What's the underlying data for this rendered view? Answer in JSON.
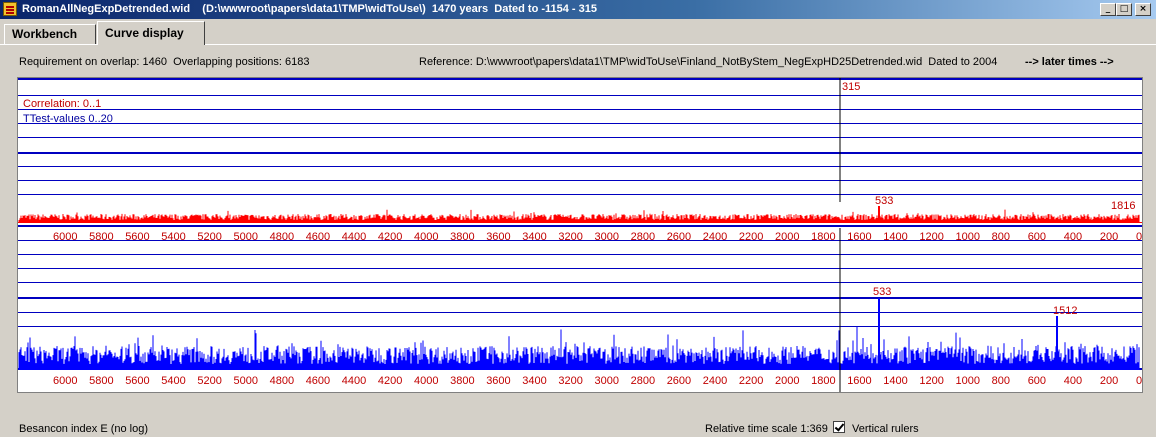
{
  "window": {
    "title": "RomanAllNegExpDetrended.wid    (D:\\wwwroot\\papers\\data1\\TMP\\widToUse\\)  1470 years  Dated to -1154 - 315",
    "btn_minimize": "_",
    "btn_maximize": "□",
    "btn_close": "×"
  },
  "tabs": [
    {
      "label": "Workbench",
      "active": false
    },
    {
      "label": "Curve display",
      "active": true
    }
  ],
  "info": {
    "overlap": "Requirement on overlap: 1460  Overlapping positions: 6183",
    "reference": "Reference: D:\\wwwroot\\papers\\data1\\TMP\\widToUse\\Finland_NotByStem_NegExpHD25Detrended.wid  Dated to 2004",
    "later_times": "--> later times -->"
  },
  "plot": {
    "legend_correlation": "Correlation: 0..1",
    "legend_ttest": "TTest-values 0..20",
    "cursor_label": "315",
    "top_peak_label": "533",
    "top_max_label": "1816",
    "bottom_peak_label": "533",
    "bottom_max_label": "1512",
    "axis_ticks": [
      "6000",
      "5800",
      "5600",
      "5400",
      "5200",
      "5000",
      "4800",
      "4600",
      "4400",
      "4200",
      "4000",
      "3800",
      "3600",
      "3400",
      "3200",
      "3000",
      "2800",
      "2600",
      "2400",
      "2200",
      "2000",
      "1800",
      "1600",
      "1400",
      "1200",
      "1000",
      "800",
      "600",
      "400",
      "200",
      "0"
    ],
    "colors": {
      "correlation": "#ff0000",
      "ttest": "#0000ff",
      "axis_text": "#c00000"
    }
  },
  "bottom": {
    "index_label": "Besancon index E (no log)",
    "time_scale": "Relative time scale 1:369",
    "vertical_rulers_label": "Vertical rulers",
    "vertical_rulers_checked": true
  }
}
